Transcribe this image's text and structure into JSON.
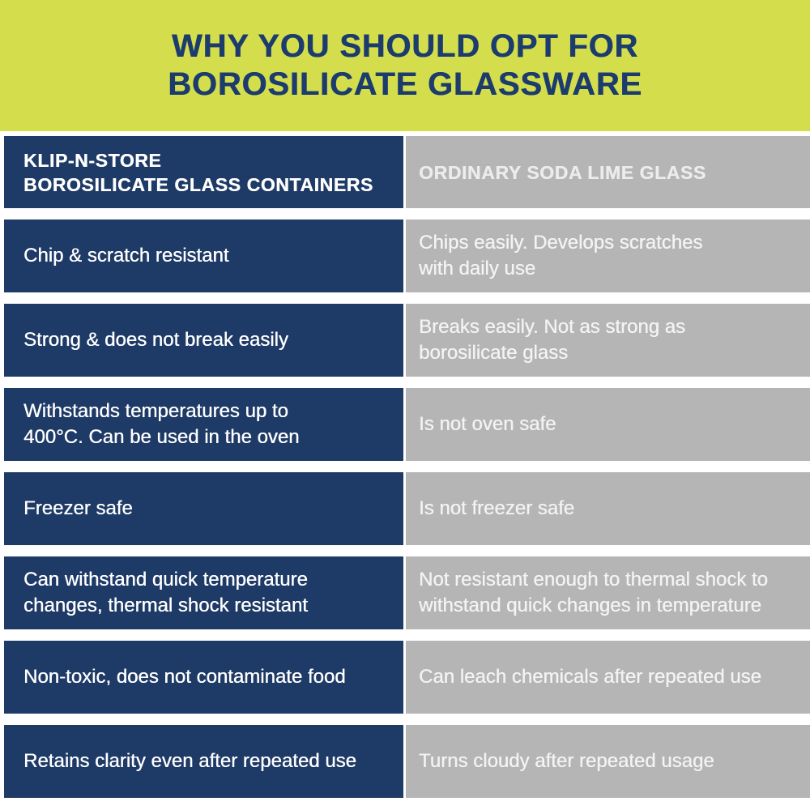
{
  "header": {
    "title_line1": "WHY YOU SHOULD OPT FOR",
    "title_line2": "BOROSILICATE GLASSWARE"
  },
  "table": {
    "columns": {
      "left": "KLIP-N-STORE\nBOROSILICATE GLASS CONTAINERS",
      "right": "ORDINARY SODA LIME GLASS"
    },
    "rows": [
      {
        "left": "Chip & scratch resistant",
        "right": "Chips easily. Develops scratches\nwith daily use"
      },
      {
        "left": "Strong & does not break easily",
        "right": "Breaks easily. Not as strong as\nborosilicate glass"
      },
      {
        "left": "Withstands temperatures up to\n400°C. Can be used in the oven",
        "right": "Is not oven safe"
      },
      {
        "left": "Freezer safe",
        "right": "Is not freezer safe"
      },
      {
        "left": "Can withstand quick temperature\nchanges, thermal shock resistant",
        "right": "Not resistant enough to thermal shock to\nwithstand quick changes in temperature"
      },
      {
        "left": "Non-toxic, does not contaminate food",
        "right": "Can leach chemicals after repeated use"
      },
      {
        "left": "Retains clarity even after repeated use",
        "right": "Turns cloudy after repeated usage"
      }
    ]
  },
  "colors": {
    "accent_yellow": "#d4de4c",
    "brand_navy": "#1e3a66",
    "title_navy": "#1d3c6e",
    "neutral_gray": "#b5b5b5",
    "gap_white": "#ffffff"
  }
}
